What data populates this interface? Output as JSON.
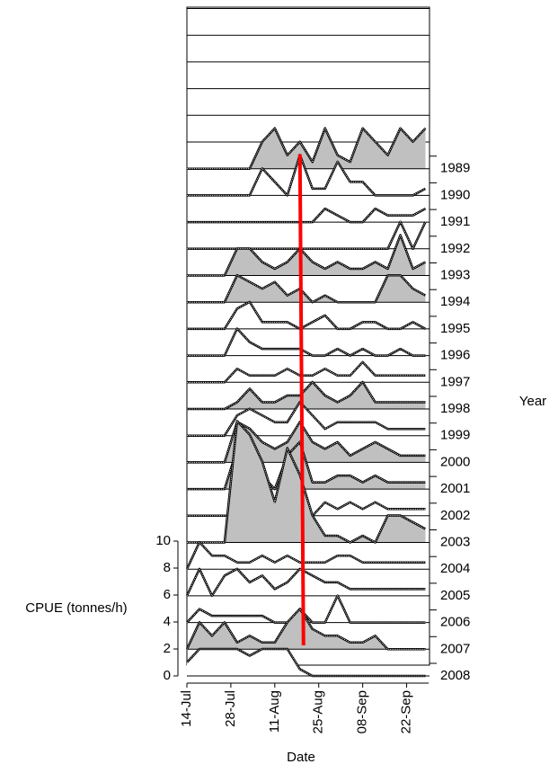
{
  "chart_data": {
    "type": "ridge",
    "y_label": "CPUE (tonnes/h)",
    "x_label": "Date",
    "legend_title": "Year",
    "x": [
      0,
      4,
      8,
      12,
      16,
      20,
      24,
      28,
      32,
      36,
      40,
      44,
      48,
      52,
      56,
      60,
      64,
      68,
      72,
      76
    ],
    "xlim": [
      0,
      77
    ],
    "xticks": [
      {
        "value": 0,
        "label": "14-Jul"
      },
      {
        "value": 14,
        "label": "28-Jul"
      },
      {
        "value": 28,
        "label": "11-Aug"
      },
      {
        "value": 42,
        "label": "25-Aug"
      },
      {
        "value": 56,
        "label": "08-Sep"
      },
      {
        "value": 70,
        "label": "22-Sep"
      }
    ],
    "ylim": [
      0,
      10
    ],
    "yticks": [
      0,
      2,
      4,
      6,
      8,
      10
    ],
    "vline": {
      "x": 36,
      "color": "#ff0000"
    },
    "series": [
      {
        "name": "1989",
        "color": "#c0c0c0",
        "values": [
          0,
          0,
          0,
          0,
          0,
          0,
          2,
          3,
          1,
          2,
          0.5,
          3,
          1,
          0.5,
          3,
          2,
          1,
          3,
          2,
          3
        ]
      },
      {
        "name": "1990",
        "color": "#ffffff",
        "values": [
          0,
          0,
          0,
          0,
          0,
          0,
          2,
          1,
          0,
          3,
          0.5,
          0.5,
          2.5,
          1,
          1,
          0,
          0,
          0,
          0,
          0.5
        ]
      },
      {
        "name": "1991",
        "color": "#ffffff",
        "values": [
          0,
          0,
          0,
          0,
          0,
          0,
          0,
          0,
          0,
          0,
          0,
          1,
          0.5,
          0,
          0,
          1,
          0.5,
          0.5,
          0.5,
          1
        ]
      },
      {
        "name": "1992",
        "color": "#ffffff",
        "values": [
          0,
          0,
          0,
          0,
          0,
          0,
          0,
          0,
          0,
          0,
          0,
          0,
          0,
          0,
          0,
          0,
          0,
          2,
          0,
          2
        ]
      },
      {
        "name": "1993",
        "color": "#c0c0c0",
        "values": [
          0,
          0,
          0,
          0,
          2,
          2,
          1,
          0.5,
          1,
          2,
          1,
          0.5,
          1,
          0.5,
          0.5,
          1,
          0.5,
          3,
          0.5,
          1
        ]
      },
      {
        "name": "1994",
        "color": "#c0c0c0",
        "values": [
          0,
          0,
          0,
          0,
          2,
          1.5,
          1,
          1.5,
          0.5,
          1,
          0,
          0.5,
          0,
          0,
          0,
          0,
          2,
          2,
          1,
          0.5
        ]
      },
      {
        "name": "1995",
        "color": "#ffffff",
        "values": [
          0,
          0,
          0,
          0,
          1.5,
          2,
          0.5,
          0.5,
          0.5,
          0,
          0.5,
          1,
          0,
          0,
          0.5,
          0.5,
          0,
          0,
          0.5,
          0
        ]
      },
      {
        "name": "1996",
        "color": "#ffffff",
        "values": [
          0,
          0,
          0,
          0,
          2,
          1,
          0.5,
          0.5,
          0.5,
          0.5,
          0,
          0,
          0.5,
          0,
          0.5,
          0,
          0,
          0.5,
          0,
          0
        ]
      },
      {
        "name": "1997",
        "color": "#ffffff",
        "values": [
          0,
          0,
          0,
          0,
          1,
          0.5,
          0.5,
          0.5,
          1,
          0.5,
          0.5,
          1,
          0.5,
          0.5,
          1.5,
          0.5,
          0.5,
          0.5,
          0.5,
          0.5
        ]
      },
      {
        "name": "1998",
        "color": "#c0c0c0",
        "values": [
          0,
          0,
          0,
          0,
          0.5,
          1.5,
          0.5,
          0.5,
          1,
          1,
          2,
          1,
          0.5,
          1,
          2,
          0.5,
          0.5,
          0.5,
          0.5,
          0.5
        ]
      },
      {
        "name": "1999",
        "color": "#ffffff",
        "values": [
          0,
          0,
          0,
          0,
          1.5,
          2,
          1.5,
          1,
          1,
          2.5,
          1.5,
          0.5,
          1,
          1,
          1,
          1,
          0.5,
          0.5,
          0.5,
          0.5
        ]
      },
      {
        "name": "2000",
        "color": "#c0c0c0",
        "values": [
          0,
          0,
          0,
          0,
          3,
          2.5,
          1.5,
          1,
          1.5,
          3,
          1.5,
          1,
          1.5,
          0.5,
          1,
          1.5,
          1,
          0.5,
          0.5,
          0.5
        ]
      },
      {
        "name": "2001",
        "color": "#c0c0c0",
        "values": [
          0,
          0,
          0,
          0,
          3,
          1.5,
          1,
          0,
          2.5,
          3.5,
          0.5,
          0.5,
          1,
          1,
          0.5,
          1,
          0.5,
          0.5,
          0.5,
          0.5
        ]
      },
      {
        "name": "2002",
        "color": "#ffffff",
        "values": [
          0,
          0,
          0,
          0,
          0,
          0,
          0,
          0,
          0,
          0,
          0,
          1,
          0.5,
          1,
          0.5,
          1,
          0.5,
          0.5,
          0.5,
          0.5
        ]
      },
      {
        "name": "2003",
        "color": "#c0c0c0",
        "values": [
          0,
          0,
          0,
          0,
          9,
          8,
          6,
          3,
          7,
          5,
          2,
          0.5,
          0.5,
          0,
          0.5,
          0,
          2,
          2,
          1.5,
          1
        ]
      },
      {
        "name": "2004",
        "color": "#ffffff",
        "values": [
          0,
          2,
          1,
          1,
          0.5,
          0.5,
          1,
          0.5,
          1,
          0.5,
          0.5,
          0.5,
          1,
          1,
          0.5,
          0.5,
          0.5,
          0.5,
          0.5,
          0.5
        ]
      },
      {
        "name": "2005",
        "color": "#ffffff",
        "values": [
          0,
          2,
          0,
          1.5,
          2,
          1,
          1.5,
          0.5,
          1,
          2,
          1.5,
          1,
          1,
          0.5,
          0.5,
          0.5,
          0.5,
          0.5,
          0.5,
          0.5
        ]
      },
      {
        "name": "2006",
        "color": "#ffffff",
        "values": [
          0,
          1,
          0.5,
          0.5,
          0.5,
          0.5,
          0.5,
          0,
          0,
          1,
          0,
          0,
          2,
          0,
          0,
          0,
          0,
          0,
          0,
          0
        ]
      },
      {
        "name": "2007",
        "color": "#c0c0c0",
        "values": [
          0,
          2,
          1,
          2,
          0.5,
          1,
          0.5,
          0.5,
          2,
          3,
          1.5,
          1,
          1,
          0.5,
          0.5,
          1,
          0,
          0,
          0,
          0
        ]
      },
      {
        "name": "2008",
        "color": "#ffffff",
        "values": [
          1,
          2,
          2,
          2,
          2,
          1.5,
          2,
          2,
          2,
          0.5,
          0,
          0,
          0,
          0,
          0,
          0,
          0,
          0,
          0,
          0
        ]
      }
    ]
  }
}
